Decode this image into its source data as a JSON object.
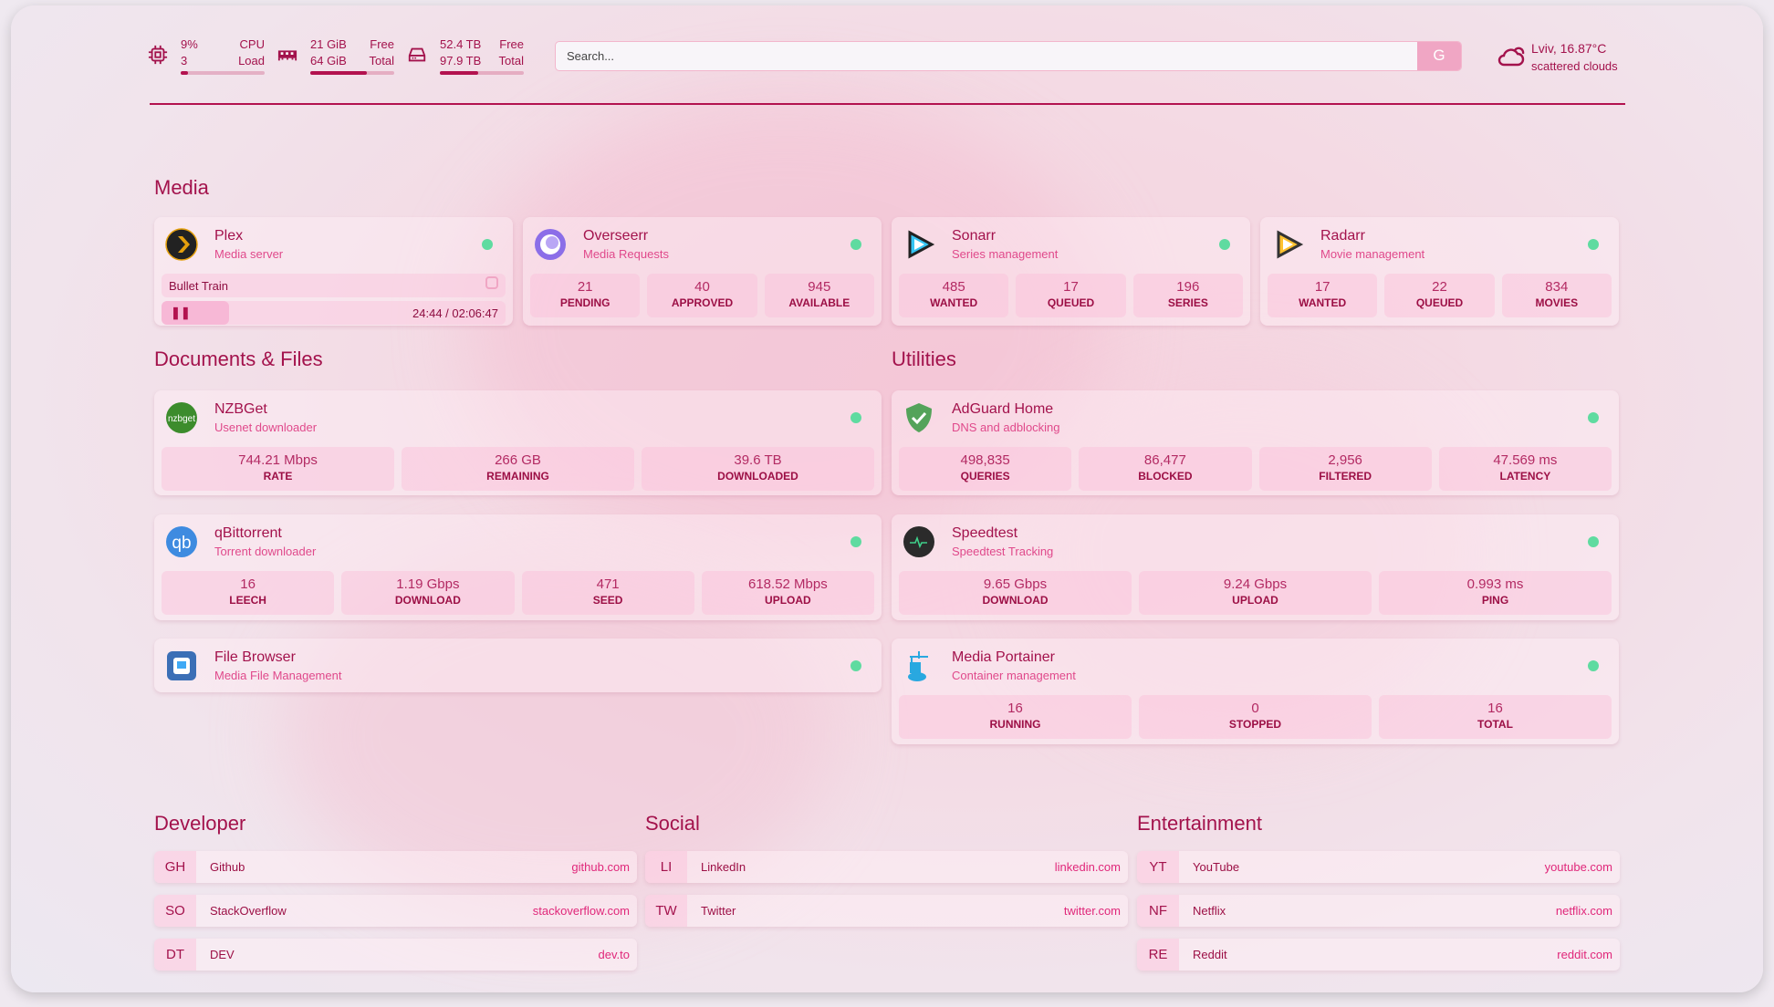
{
  "header": {
    "cpu": {
      "value": "9%",
      "sub": "3",
      "label1": "CPU",
      "label2": "Load",
      "percent": 9,
      "icon": "cpu-icon"
    },
    "memory": {
      "value": "21 GiB",
      "sub": "64 GiB",
      "label1": "Free",
      "label2": "Total",
      "percent": 67,
      "icon": "memory-icon"
    },
    "disk": {
      "value": "52.4 TB",
      "sub": "97.9 TB",
      "label1": "Free",
      "label2": "Total",
      "percent": 46,
      "icon": "disk-icon"
    },
    "search": {
      "placeholder": "Search...",
      "button": "G"
    },
    "weather": {
      "location": "Lviv, 16.87°C",
      "condition": "scattered clouds",
      "icon": "cloud-icon"
    }
  },
  "colors": {
    "accent": "#a3124c",
    "status_online": "#5fdba0",
    "link": "#e0277a"
  },
  "media": {
    "title": "Media",
    "cards": [
      {
        "name": "Plex",
        "desc": "Media server",
        "icon": "plex-icon",
        "now_playing": "Bullet Train",
        "time": "24:44 / 02:06:47",
        "progress": 19.5
      },
      {
        "name": "Overseerr",
        "desc": "Media Requests",
        "icon": "overseerr-icon",
        "stats": [
          {
            "v": "21",
            "k": "PENDING"
          },
          {
            "v": "40",
            "k": "APPROVED"
          },
          {
            "v": "945",
            "k": "AVAILABLE"
          }
        ]
      },
      {
        "name": "Sonarr",
        "desc": "Series management",
        "icon": "sonarr-icon",
        "stats": [
          {
            "v": "485",
            "k": "WANTED"
          },
          {
            "v": "17",
            "k": "QUEUED"
          },
          {
            "v": "196",
            "k": "SERIES"
          }
        ]
      },
      {
        "name": "Radarr",
        "desc": "Movie management",
        "icon": "radarr-icon",
        "stats": [
          {
            "v": "17",
            "k": "WANTED"
          },
          {
            "v": "22",
            "k": "QUEUED"
          },
          {
            "v": "834",
            "k": "MOVIES"
          }
        ]
      }
    ]
  },
  "docs": {
    "title": "Documents & Files",
    "cards": [
      {
        "name": "NZBGet",
        "desc": "Usenet downloader",
        "icon": "nzbget-icon",
        "stats": [
          {
            "v": "744.21 Mbps",
            "k": "RATE"
          },
          {
            "v": "266 GB",
            "k": "REMAINING"
          },
          {
            "v": "39.6 TB",
            "k": "DOWNLOADED"
          }
        ]
      },
      {
        "name": "qBittorrent",
        "desc": "Torrent downloader",
        "icon": "qbittorrent-icon",
        "stats": [
          {
            "v": "16",
            "k": "LEECH"
          },
          {
            "v": "1.19 Gbps",
            "k": "DOWNLOAD"
          },
          {
            "v": "471",
            "k": "SEED"
          },
          {
            "v": "618.52 Mbps",
            "k": "UPLOAD"
          }
        ]
      },
      {
        "name": "File Browser",
        "desc": "Media File Management",
        "icon": "filebrowser-icon",
        "stats": []
      }
    ]
  },
  "utilities": {
    "title": "Utilities",
    "cards": [
      {
        "name": "AdGuard Home",
        "desc": "DNS and adblocking",
        "icon": "adguard-icon",
        "stats": [
          {
            "v": "498,835",
            "k": "QUERIES"
          },
          {
            "v": "86,477",
            "k": "BLOCKED"
          },
          {
            "v": "2,956",
            "k": "FILTERED"
          },
          {
            "v": "47.569 ms",
            "k": "LATENCY"
          }
        ]
      },
      {
        "name": "Speedtest",
        "desc": "Speedtest Tracking",
        "icon": "speedtest-icon",
        "stats": [
          {
            "v": "9.65 Gbps",
            "k": "DOWNLOAD"
          },
          {
            "v": "9.24 Gbps",
            "k": "UPLOAD"
          },
          {
            "v": "0.993 ms",
            "k": "PING"
          }
        ]
      },
      {
        "name": "Media Portainer",
        "desc": "Container management",
        "icon": "portainer-icon",
        "stats": [
          {
            "v": "16",
            "k": "RUNNING"
          },
          {
            "v": "0",
            "k": "STOPPED"
          },
          {
            "v": "16",
            "k": "TOTAL"
          }
        ]
      }
    ]
  },
  "bookmarks": [
    {
      "title": "Developer",
      "items": [
        {
          "abbr": "GH",
          "name": "Github",
          "url": "github.com"
        },
        {
          "abbr": "SO",
          "name": "StackOverflow",
          "url": "stackoverflow.com"
        },
        {
          "abbr": "DT",
          "name": "DEV",
          "url": "dev.to"
        }
      ]
    },
    {
      "title": "Social",
      "items": [
        {
          "abbr": "LI",
          "name": "LinkedIn",
          "url": "linkedin.com"
        },
        {
          "abbr": "TW",
          "name": "Twitter",
          "url": "twitter.com"
        }
      ]
    },
    {
      "title": "Entertainment",
      "items": [
        {
          "abbr": "YT",
          "name": "YouTube",
          "url": "youtube.com"
        },
        {
          "abbr": "NF",
          "name": "Netflix",
          "url": "netflix.com"
        },
        {
          "abbr": "RE",
          "name": "Reddit",
          "url": "reddit.com"
        }
      ]
    }
  ]
}
